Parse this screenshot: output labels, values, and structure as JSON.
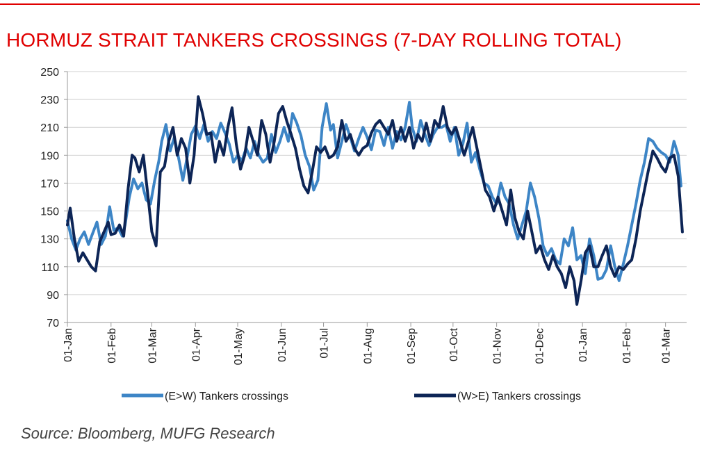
{
  "chart_data": {
    "type": "line",
    "title": "HORMUZ STRAIT TANKERS CROSSINGS (7-DAY ROLLING TOTAL)",
    "xlabel": "",
    "ylabel": "",
    "ylim": [
      70,
      250
    ],
    "yticks": [
      70,
      90,
      110,
      130,
      150,
      170,
      190,
      210,
      230,
      250
    ],
    "xlim": [
      0,
      425
    ],
    "xticks": [
      {
        "label": "01-Jan",
        "day": 0
      },
      {
        "label": "01-Feb",
        "day": 31
      },
      {
        "label": "01-Mar",
        "day": 60
      },
      {
        "label": "01-Apr",
        "day": 91
      },
      {
        "label": "01-May",
        "day": 121
      },
      {
        "label": "01-Jun",
        "day": 152
      },
      {
        "label": "01-Jul",
        "day": 182
      },
      {
        "label": "01-Aug",
        "day": 213
      },
      {
        "label": "01-Sep",
        "day": 244
      },
      {
        "label": "01-Oct",
        "day": 274
      },
      {
        "label": "01-Nov",
        "day": 305
      },
      {
        "label": "01-Dec",
        "day": 335
      },
      {
        "label": "01-Jan",
        "day": 366
      },
      {
        "label": "01-Feb",
        "day": 397
      },
      {
        "label": "01-Mar",
        "day": 425
      }
    ],
    "grid": true,
    "legend_position": "bottom",
    "series": [
      {
        "name": "(E>W) Tankers crossings",
        "color": "#3d85c6",
        "points": [
          [
            0,
            143
          ],
          [
            3,
            130
          ],
          [
            6,
            122
          ],
          [
            9,
            130
          ],
          [
            12,
            135
          ],
          [
            15,
            126
          ],
          [
            18,
            134
          ],
          [
            21,
            142
          ],
          [
            24,
            126
          ],
          [
            27,
            132
          ],
          [
            30,
            153
          ],
          [
            33,
            136
          ],
          [
            36,
            138
          ],
          [
            39,
            132
          ],
          [
            41,
            140
          ],
          [
            44,
            160
          ],
          [
            47,
            173
          ],
          [
            50,
            166
          ],
          [
            53,
            170
          ],
          [
            56,
            158
          ],
          [
            59,
            155
          ],
          [
            62,
            172
          ],
          [
            65,
            186
          ],
          [
            67,
            200
          ],
          [
            70,
            212
          ],
          [
            73,
            193
          ],
          [
            76,
            203
          ],
          [
            79,
            188
          ],
          [
            82,
            172
          ],
          [
            85,
            188
          ],
          [
            88,
            205
          ],
          [
            91,
            211
          ],
          [
            94,
            202
          ],
          [
            97,
            212
          ],
          [
            100,
            200
          ],
          [
            103,
            207
          ],
          [
            106,
            202
          ],
          [
            109,
            213
          ],
          [
            112,
            206
          ],
          [
            115,
            198
          ],
          [
            118,
            185
          ],
          [
            121,
            190
          ],
          [
            124,
            186
          ],
          [
            127,
            195
          ],
          [
            130,
            188
          ],
          [
            133,
            200
          ],
          [
            136,
            190
          ],
          [
            139,
            185
          ],
          [
            142,
            188
          ],
          [
            145,
            205
          ],
          [
            148,
            192
          ],
          [
            151,
            200
          ],
          [
            154,
            210
          ],
          [
            157,
            200
          ],
          [
            160,
            220
          ],
          [
            163,
            213
          ],
          [
            166,
            204
          ],
          [
            169,
            190
          ],
          [
            172,
            182
          ],
          [
            175,
            165
          ],
          [
            178,
            172
          ],
          [
            181,
            210
          ],
          [
            184,
            227
          ],
          [
            187,
            208
          ],
          [
            189,
            212
          ],
          [
            192,
            188
          ],
          [
            195,
            200
          ],
          [
            198,
            212
          ],
          [
            201,
            203
          ],
          [
            204,
            193
          ],
          [
            207,
            202
          ],
          [
            210,
            210
          ],
          [
            213,
            203
          ],
          [
            216,
            194
          ],
          [
            219,
            208
          ],
          [
            222,
            207
          ],
          [
            225,
            197
          ],
          [
            228,
            210
          ],
          [
            231,
            195
          ],
          [
            234,
            207
          ],
          [
            237,
            201
          ],
          [
            240,
            210
          ],
          [
            243,
            228
          ],
          [
            245,
            210
          ],
          [
            248,
            200
          ],
          [
            251,
            215
          ],
          [
            254,
            205
          ],
          [
            257,
            197
          ],
          [
            260,
            205
          ],
          [
            263,
            210
          ],
          [
            266,
            210
          ],
          [
            269,
            212
          ],
          [
            272,
            200
          ],
          [
            275,
            210
          ],
          [
            278,
            190
          ],
          [
            281,
            198
          ],
          [
            284,
            213
          ],
          [
            287,
            185
          ],
          [
            290,
            192
          ],
          [
            293,
            180
          ],
          [
            296,
            170
          ],
          [
            299,
            168
          ],
          [
            302,
            160
          ],
          [
            305,
            155
          ],
          [
            308,
            170
          ],
          [
            311,
            160
          ],
          [
            314,
            155
          ],
          [
            317,
            140
          ],
          [
            320,
            130
          ],
          [
            323,
            140
          ],
          [
            326,
            150
          ],
          [
            329,
            170
          ],
          [
            332,
            160
          ],
          [
            335,
            145
          ],
          [
            338,
            125
          ],
          [
            341,
            118
          ],
          [
            344,
            123
          ],
          [
            347,
            115
          ],
          [
            350,
            112
          ],
          [
            353,
            130
          ],
          [
            356,
            125
          ],
          [
            359,
            138
          ],
          [
            362,
            115
          ],
          [
            365,
            118
          ],
          [
            368,
            105
          ],
          [
            371,
            130
          ],
          [
            374,
            118
          ],
          [
            377,
            101
          ],
          [
            380,
            102
          ],
          [
            383,
            108
          ],
          [
            386,
            125
          ],
          [
            389,
            110
          ],
          [
            392,
            100
          ],
          [
            395,
            112
          ],
          [
            398,
            125
          ],
          [
            401,
            140
          ],
          [
            404,
            155
          ],
          [
            407,
            172
          ],
          [
            410,
            185
          ],
          [
            413,
            202
          ],
          [
            416,
            200
          ],
          [
            419,
            195
          ],
          [
            422,
            192
          ],
          [
            425,
            190
          ],
          [
            428,
            185
          ],
          [
            431,
            200
          ],
          [
            434,
            190
          ],
          [
            436,
            168
          ]
        ]
      },
      {
        "name": "(W>E) Tankers crossings",
        "color": "#0d2556",
        "points": [
          [
            0,
            140
          ],
          [
            2,
            152
          ],
          [
            5,
            130
          ],
          [
            8,
            114
          ],
          [
            11,
            120
          ],
          [
            14,
            115
          ],
          [
            17,
            110
          ],
          [
            20,
            107
          ],
          [
            23,
            128
          ],
          [
            26,
            135
          ],
          [
            29,
            142
          ],
          [
            31,
            133
          ],
          [
            34,
            134
          ],
          [
            37,
            140
          ],
          [
            40,
            132
          ],
          [
            43,
            165
          ],
          [
            46,
            190
          ],
          [
            48,
            188
          ],
          [
            51,
            178
          ],
          [
            54,
            190
          ],
          [
            57,
            163
          ],
          [
            60,
            135
          ],
          [
            63,
            125
          ],
          [
            66,
            178
          ],
          [
            69,
            182
          ],
          [
            72,
            200
          ],
          [
            75,
            210
          ],
          [
            78,
            190
          ],
          [
            81,
            202
          ],
          [
            84,
            195
          ],
          [
            87,
            170
          ],
          [
            90,
            190
          ],
          [
            93,
            232
          ],
          [
            96,
            220
          ],
          [
            99,
            205
          ],
          [
            102,
            206
          ],
          [
            105,
            185
          ],
          [
            108,
            200
          ],
          [
            111,
            190
          ],
          [
            114,
            210
          ],
          [
            117,
            224
          ],
          [
            120,
            198
          ],
          [
            123,
            180
          ],
          [
            126,
            190
          ],
          [
            129,
            210
          ],
          [
            132,
            200
          ],
          [
            135,
            190
          ],
          [
            138,
            215
          ],
          [
            141,
            205
          ],
          [
            144,
            185
          ],
          [
            147,
            200
          ],
          [
            150,
            220
          ],
          [
            153,
            225
          ],
          [
            156,
            214
          ],
          [
            159,
            205
          ],
          [
            162,
            195
          ],
          [
            165,
            180
          ],
          [
            168,
            168
          ],
          [
            171,
            163
          ],
          [
            174,
            178
          ],
          [
            177,
            196
          ],
          [
            180,
            192
          ],
          [
            183,
            196
          ],
          [
            186,
            188
          ],
          [
            189,
            190
          ],
          [
            192,
            196
          ],
          [
            195,
            215
          ],
          [
            198,
            200
          ],
          [
            201,
            205
          ],
          [
            204,
            195
          ],
          [
            207,
            190
          ],
          [
            210,
            195
          ],
          [
            213,
            197
          ],
          [
            216,
            206
          ],
          [
            219,
            212
          ],
          [
            222,
            215
          ],
          [
            225,
            210
          ],
          [
            228,
            205
          ],
          [
            231,
            215
          ],
          [
            234,
            200
          ],
          [
            237,
            210
          ],
          [
            240,
            200
          ],
          [
            243,
            210
          ],
          [
            246,
            195
          ],
          [
            249,
            205
          ],
          [
            252,
            200
          ],
          [
            255,
            213
          ],
          [
            258,
            200
          ],
          [
            261,
            215
          ],
          [
            264,
            210
          ],
          [
            267,
            225
          ],
          [
            270,
            210
          ],
          [
            273,
            205
          ],
          [
            276,
            210
          ],
          [
            279,
            200
          ],
          [
            282,
            190
          ],
          [
            285,
            200
          ],
          [
            288,
            210
          ],
          [
            291,
            195
          ],
          [
            294,
            180
          ],
          [
            297,
            165
          ],
          [
            300,
            160
          ],
          [
            303,
            150
          ],
          [
            306,
            160
          ],
          [
            309,
            150
          ],
          [
            312,
            140
          ],
          [
            315,
            165
          ],
          [
            318,
            145
          ],
          [
            321,
            135
          ],
          [
            324,
            130
          ],
          [
            327,
            150
          ],
          [
            330,
            135
          ],
          [
            333,
            120
          ],
          [
            336,
            125
          ],
          [
            339,
            115
          ],
          [
            342,
            108
          ],
          [
            345,
            118
          ],
          [
            348,
            110
          ],
          [
            351,
            105
          ],
          [
            354,
            95
          ],
          [
            357,
            110
          ],
          [
            360,
            100
          ],
          [
            362,
            83
          ],
          [
            365,
            100
          ],
          [
            368,
            120
          ],
          [
            371,
            125
          ],
          [
            374,
            110
          ],
          [
            377,
            110
          ],
          [
            380,
            118
          ],
          [
            383,
            125
          ],
          [
            386,
            110
          ],
          [
            389,
            103
          ],
          [
            392,
            110
          ],
          [
            395,
            108
          ],
          [
            398,
            112
          ],
          [
            401,
            115
          ],
          [
            404,
            130
          ],
          [
            407,
            150
          ],
          [
            410,
            165
          ],
          [
            413,
            180
          ],
          [
            416,
            193
          ],
          [
            419,
            188
          ],
          [
            422,
            182
          ],
          [
            425,
            178
          ],
          [
            428,
            188
          ],
          [
            431,
            190
          ],
          [
            434,
            175
          ],
          [
            437,
            135
          ]
        ]
      }
    ]
  },
  "source": "Source: Bloomberg, MUFG Research"
}
